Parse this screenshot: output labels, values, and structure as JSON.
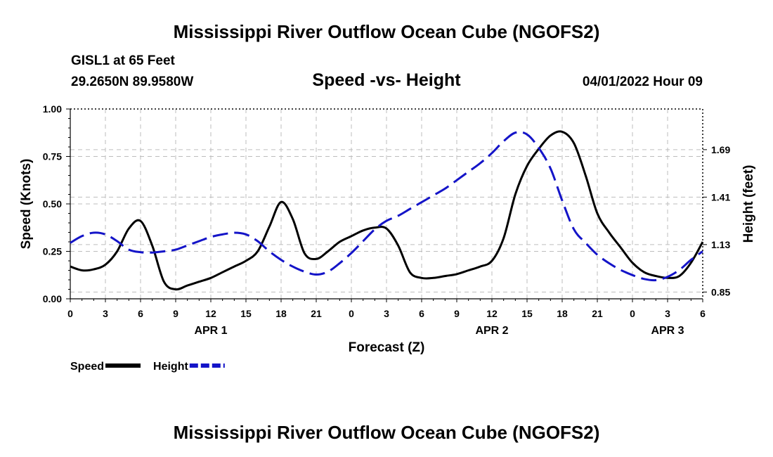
{
  "page": {
    "title": "Mississippi River Outflow Ocean Cube (NGOFS2)",
    "footer_title": "Mississippi River Outflow Ocean Cube (NGOFS2)",
    "station": "GISL1 at 65 Feet",
    "coords": "29.2650N  89.9580W",
    "subtitle": "Speed -vs- Height",
    "timestamp": "04/01/2022 Hour 09"
  },
  "chart_data": {
    "type": "line",
    "title": "Speed -vs- Height",
    "xlabel": "Forecast (Z)",
    "ylabel": "Speed (Knots)",
    "y2label": "Height (feet)",
    "x_unit": "hours since APR 1 00Z",
    "xlim": [
      0,
      54
    ],
    "ylim": [
      0,
      1.0
    ],
    "y2lim": [
      0.81,
      1.93
    ],
    "x_ticks": [
      0,
      3,
      6,
      9,
      12,
      15,
      18,
      21,
      24,
      27,
      30,
      33,
      36,
      39,
      42,
      45,
      48,
      51,
      54
    ],
    "x_tick_labels": [
      "0",
      "3",
      "6",
      "9",
      "12",
      "15",
      "18",
      "21",
      "0",
      "3",
      "6",
      "9",
      "12",
      "15",
      "18",
      "21",
      "0",
      "3",
      "6"
    ],
    "date_labels": [
      {
        "x": 12,
        "label": "APR 1"
      },
      {
        "x": 36,
        "label": "APR 2"
      },
      {
        "x": 51,
        "label": "APR 3"
      }
    ],
    "y_ticks": [
      0,
      0.25,
      0.5,
      0.75,
      1.0
    ],
    "y_tick_labels": [
      "0.00",
      "0.25",
      "0.50",
      "0.75",
      "1.00"
    ],
    "y2_ticks": [
      0.85,
      1.13,
      1.41,
      1.69
    ],
    "y2_tick_labels": [
      "0.85",
      "1.13",
      "1.41",
      "1.69"
    ],
    "grid": true,
    "series": [
      {
        "name": "Speed",
        "axis": "left",
        "color": "#000000",
        "dash": "solid",
        "x": [
          0,
          1,
          2,
          3,
          4,
          5,
          6,
          7,
          8,
          9,
          10,
          11,
          12,
          13,
          14,
          15,
          16,
          17,
          18,
          19,
          20,
          21,
          22,
          23,
          24,
          25,
          26,
          27,
          28,
          29,
          30,
          31,
          32,
          33,
          34,
          35,
          36,
          37,
          38,
          39,
          40,
          41,
          42,
          43,
          44,
          45,
          46,
          47,
          48,
          49,
          50,
          51,
          52,
          53,
          54
        ],
        "values": [
          0.17,
          0.15,
          0.155,
          0.18,
          0.25,
          0.37,
          0.41,
          0.28,
          0.09,
          0.05,
          0.07,
          0.09,
          0.11,
          0.14,
          0.17,
          0.2,
          0.25,
          0.38,
          0.51,
          0.42,
          0.24,
          0.21,
          0.25,
          0.3,
          0.33,
          0.36,
          0.375,
          0.37,
          0.28,
          0.14,
          0.11,
          0.11,
          0.12,
          0.13,
          0.15,
          0.17,
          0.2,
          0.32,
          0.55,
          0.7,
          0.79,
          0.86,
          0.88,
          0.82,
          0.65,
          0.45,
          0.35,
          0.27,
          0.19,
          0.14,
          0.12,
          0.11,
          0.12,
          0.19,
          0.3
        ]
      },
      {
        "name": "Height",
        "axis": "right",
        "color": "#1414c8",
        "dash": "dashed",
        "x": [
          0,
          1,
          2,
          3,
          4,
          5,
          6,
          7,
          8,
          9,
          10,
          11,
          12,
          13,
          14,
          15,
          16,
          17,
          18,
          19,
          20,
          21,
          22,
          23,
          24,
          25,
          26,
          27,
          28,
          29,
          30,
          31,
          32,
          33,
          34,
          35,
          36,
          37,
          38,
          39,
          40,
          41,
          42,
          43,
          44,
          45,
          46,
          47,
          48,
          49,
          50,
          51,
          52,
          53,
          54
        ],
        "values": [
          1.14,
          1.18,
          1.2,
          1.19,
          1.15,
          1.1,
          1.085,
          1.083,
          1.09,
          1.1,
          1.125,
          1.15,
          1.175,
          1.19,
          1.2,
          1.19,
          1.15,
          1.09,
          1.04,
          1.0,
          0.97,
          0.953,
          0.97,
          1.02,
          1.08,
          1.15,
          1.22,
          1.27,
          1.3,
          1.34,
          1.38,
          1.42,
          1.46,
          1.51,
          1.56,
          1.61,
          1.67,
          1.74,
          1.79,
          1.78,
          1.7,
          1.58,
          1.39,
          1.22,
          1.14,
          1.07,
          1.02,
          0.98,
          0.95,
          0.927,
          0.92,
          0.94,
          0.98,
          1.04,
          1.09
        ]
      }
    ],
    "legend": {
      "placement": "bottom-left",
      "entries": [
        {
          "label": "Speed",
          "color": "#000000",
          "dash": "solid"
        },
        {
          "label": "Height",
          "color": "#1414c8",
          "dash": "dashed"
        }
      ]
    }
  }
}
